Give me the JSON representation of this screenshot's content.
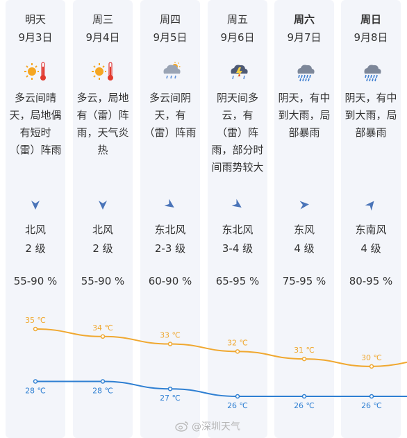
{
  "days": [
    {
      "day": "明天",
      "date": "9月3日",
      "icon": "sunny-hot-icon",
      "desc": [
        "多云间晴",
        "天，局地偶",
        "有短时",
        "（雷）阵雨"
      ],
      "wind_icon": "wind-arrow-north-icon",
      "wind_dir": "北风",
      "wind_level": "2 级",
      "humidity": "55-90 %",
      "bold": false
    },
    {
      "day": "周三",
      "date": "9月4日",
      "icon": "sunny-hot-icon",
      "desc": [
        "多云，局地",
        "有（雷）阵",
        "雨，天气炎",
        "热"
      ],
      "wind_icon": "wind-arrow-north-icon",
      "wind_dir": "北风",
      "wind_level": "2 级",
      "humidity": "55-90 %",
      "bold": false
    },
    {
      "day": "周四",
      "date": "9月5日",
      "icon": "cloudy-rain-icon",
      "desc": [
        "多云间阴",
        "天，有",
        "（雷）阵雨"
      ],
      "wind_icon": "wind-arrow-northeast-icon",
      "wind_dir": "东北风",
      "wind_level": "2-3 级",
      "humidity": "60-90 %",
      "bold": false
    },
    {
      "day": "周五",
      "date": "9月6日",
      "icon": "thunderstorm-icon",
      "desc": [
        "阴天间多",
        "云，有",
        "（雷）阵",
        "雨，部分时",
        "间雨势较大"
      ],
      "wind_icon": "wind-arrow-northeast-icon",
      "wind_dir": "东北风",
      "wind_level": "3-4 级",
      "humidity": "65-95 %",
      "bold": false
    },
    {
      "day": "周六",
      "date": "9月7日",
      "icon": "heavy-rain-icon",
      "desc": [
        "阴天，有中",
        "到大雨，局",
        "部暴雨"
      ],
      "wind_icon": "wind-arrow-east-icon",
      "wind_dir": "东风",
      "wind_level": "4 级",
      "humidity": "75-95 %",
      "bold": true
    },
    {
      "day": "周日",
      "date": "9月8日",
      "icon": "heavy-rain-icon",
      "desc": [
        "阴天，有中",
        "到大雨，局",
        "部暴雨"
      ],
      "wind_icon": "wind-arrow-southeast-icon",
      "wind_dir": "东南风",
      "wind_level": "4 级",
      "humidity": "80-95 %",
      "bold": true
    }
  ],
  "chart_data": {
    "type": "line",
    "x": [
      "9月3日",
      "9月4日",
      "9月5日",
      "9月6日",
      "9月7日",
      "9月8日"
    ],
    "series": [
      {
        "values": [
          35,
          34,
          33,
          32,
          31,
          30
        ],
        "labels": [
          "35 ℃",
          "34 ℃",
          "33 ℃",
          "32 ℃",
          "31 ℃",
          "30 ℃"
        ],
        "color": "#f0a830"
      },
      {
        "values": [
          28,
          28,
          27,
          26,
          26,
          26
        ],
        "labels": [
          "28 ℃",
          "28 ℃",
          "27 ℃",
          "26 ℃",
          "26 ℃",
          "26 ℃"
        ],
        "color": "#2e7fd2"
      }
    ]
  },
  "colors": {
    "high": "#f0a830",
    "low": "#2e7fd2",
    "label_high": "#f0a830",
    "label_low": "#2e7fd2"
  },
  "watermark": {
    "icon": "weibo-icon",
    "text": "@深圳天气"
  }
}
